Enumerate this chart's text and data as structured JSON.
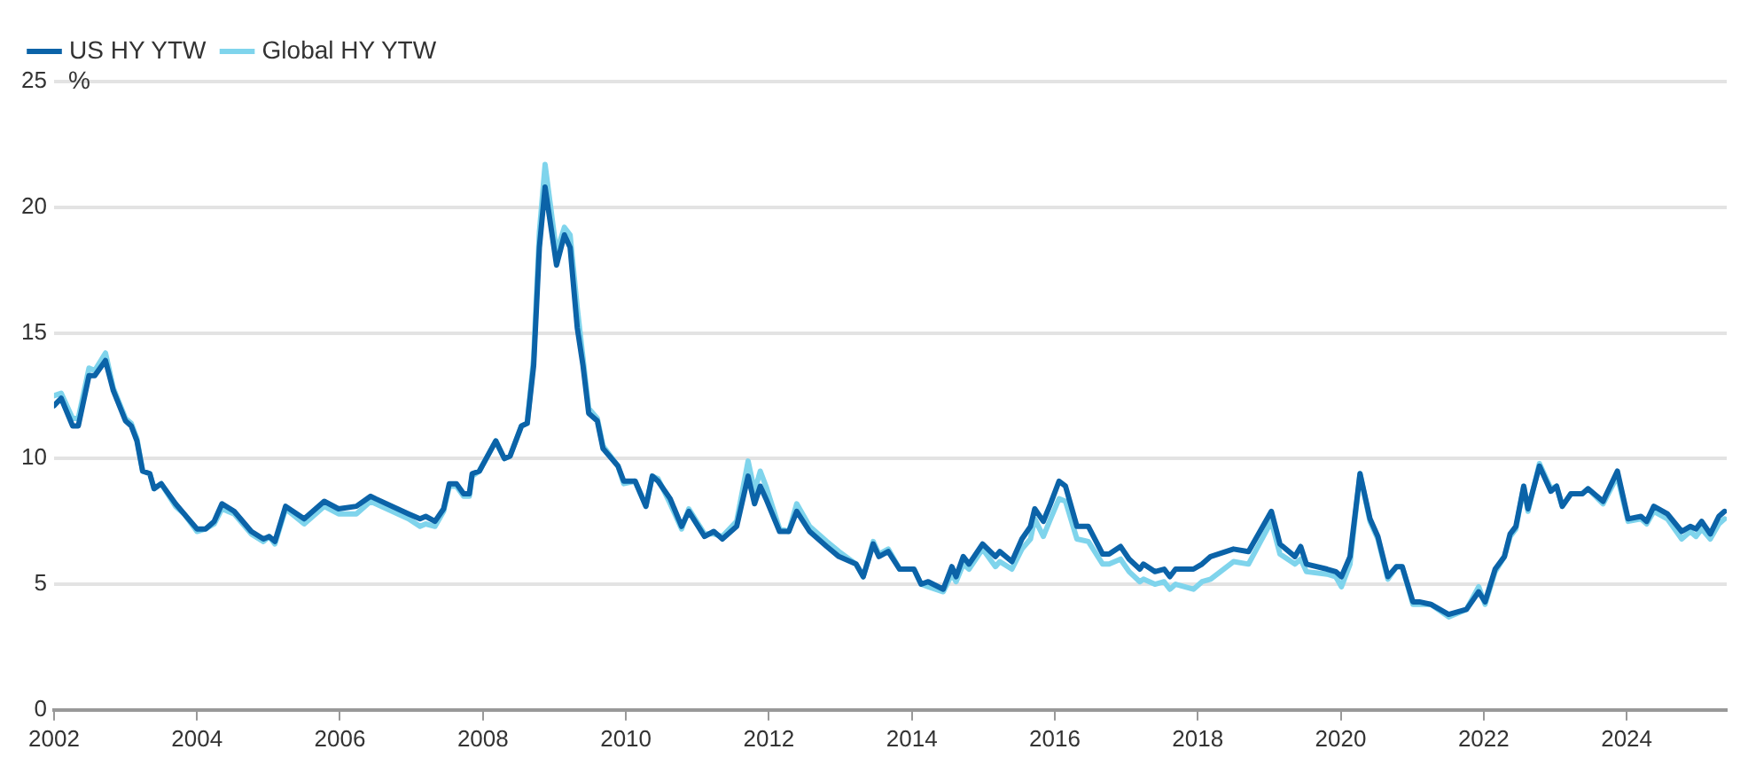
{
  "chart_data": {
    "type": "line",
    "ylabel": "%",
    "xlim": [
      2002,
      2025.4
    ],
    "xticks": [
      2002,
      2004,
      2006,
      2008,
      2010,
      2012,
      2014,
      2016,
      2018,
      2020,
      2022,
      2024
    ],
    "ylim": [
      0,
      25
    ],
    "yticks": [
      0,
      5,
      10,
      15,
      20,
      25
    ],
    "grid": "y",
    "legend": "top left",
    "marker": "none",
    "line_style": "solid",
    "x": [
      2002.0,
      2002.1,
      2002.26,
      2002.34,
      2002.49,
      2002.57,
      2002.72,
      2002.83,
      2003.0,
      2003.08,
      2003.16,
      2003.24,
      2003.34,
      2003.4,
      2003.5,
      2003.7,
      2003.82,
      2004.0,
      2004.12,
      2004.24,
      2004.35,
      2004.52,
      2004.76,
      2004.93,
      2005.01,
      2005.09,
      2005.24,
      2005.5,
      2005.78,
      2005.98,
      2006.23,
      2006.43,
      2006.5,
      2006.96,
      2007.12,
      2007.2,
      2007.33,
      2007.45,
      2007.53,
      2007.63,
      2007.73,
      2007.81,
      2007.85,
      2007.95,
      2008.18,
      2008.3,
      2008.38,
      2008.54,
      2008.62,
      2008.71,
      2008.79,
      2008.87,
      2009.03,
      2009.14,
      2009.22,
      2009.32,
      2009.4,
      2009.48,
      2009.6,
      2009.68,
      2009.89,
      2009.97,
      2010.13,
      2010.28,
      2010.37,
      2010.45,
      2010.62,
      2010.78,
      2010.88,
      2011.1,
      2011.23,
      2011.35,
      2011.55,
      2011.71,
      2011.8,
      2011.88,
      2011.96,
      2012.15,
      2012.28,
      2012.39,
      2012.57,
      2012.81,
      2012.98,
      2013.22,
      2013.32,
      2013.46,
      2013.54,
      2013.67,
      2013.83,
      2014.03,
      2014.13,
      2014.23,
      2014.44,
      2014.56,
      2014.62,
      2014.72,
      2014.8,
      2014.99,
      2015.17,
      2015.23,
      2015.4,
      2015.54,
      2015.66,
      2015.72,
      2015.84,
      2015.94,
      2016.06,
      2016.15,
      2016.31,
      2016.47,
      2016.67,
      2016.76,
      2016.92,
      2017.04,
      2017.19,
      2017.24,
      2017.4,
      2017.53,
      2017.61,
      2017.69,
      2017.94,
      2018.06,
      2018.18,
      2018.5,
      2018.71,
      2019.03,
      2019.15,
      2019.36,
      2019.44,
      2019.52,
      2019.81,
      2019.93,
      2020.01,
      2020.13,
      2020.27,
      2020.41,
      2020.52,
      2020.66,
      2020.78,
      2020.86,
      2021.01,
      2021.1,
      2021.26,
      2021.51,
      2021.76,
      2021.93,
      2022.02,
      2022.16,
      2022.29,
      2022.37,
      2022.45,
      2022.56,
      2022.62,
      2022.78,
      2022.94,
      2023.02,
      2023.1,
      2023.22,
      2023.38,
      2023.46,
      2023.67,
      2023.87,
      2024.02,
      2024.2,
      2024.28,
      2024.38,
      2024.57,
      2024.77,
      2024.89,
      2024.97,
      2025.05,
      2025.17,
      2025.29,
      2025.37
    ],
    "series": [
      {
        "name": "US HY YTW",
        "color": "#0b63a8",
        "values": [
          12.1,
          12.4,
          11.3,
          11.3,
          13.3,
          13.3,
          13.9,
          12.7,
          11.5,
          11.3,
          10.7,
          9.5,
          9.4,
          8.8,
          9.0,
          8.2,
          7.8,
          7.2,
          7.2,
          7.5,
          8.2,
          7.9,
          7.1,
          6.8,
          6.9,
          6.7,
          8.1,
          7.6,
          8.3,
          8.0,
          8.1,
          8.5,
          8.4,
          7.8,
          7.6,
          7.7,
          7.5,
          8.0,
          9.0,
          9.0,
          8.6,
          8.6,
          9.4,
          9.5,
          10.7,
          10.0,
          10.1,
          11.3,
          11.4,
          13.7,
          18.4,
          20.8,
          17.7,
          18.9,
          18.4,
          15.2,
          13.7,
          11.8,
          11.5,
          10.4,
          9.7,
          9.1,
          9.1,
          8.1,
          9.3,
          9.1,
          8.4,
          7.3,
          7.9,
          6.9,
          7.1,
          6.8,
          7.3,
          9.3,
          8.2,
          8.9,
          8.4,
          7.1,
          7.1,
          7.9,
          7.1,
          6.5,
          6.1,
          5.8,
          5.3,
          6.6,
          6.1,
          6.3,
          5.6,
          5.6,
          5.0,
          5.1,
          4.8,
          5.7,
          5.3,
          6.1,
          5.8,
          6.6,
          6.1,
          6.3,
          5.9,
          6.8,
          7.3,
          8.0,
          7.5,
          8.2,
          9.1,
          8.9,
          7.3,
          7.3,
          6.2,
          6.2,
          6.5,
          6.0,
          5.6,
          5.8,
          5.5,
          5.6,
          5.3,
          5.6,
          5.6,
          5.8,
          6.1,
          6.4,
          6.3,
          7.9,
          6.6,
          6.1,
          6.5,
          5.8,
          5.6,
          5.5,
          5.3,
          6.1,
          9.4,
          7.6,
          6.9,
          5.3,
          5.7,
          5.7,
          4.3,
          4.3,
          4.2,
          3.8,
          4.0,
          4.7,
          4.3,
          5.6,
          6.1,
          7.0,
          7.3,
          8.9,
          8.0,
          9.7,
          8.7,
          8.9,
          8.1,
          8.6,
          8.6,
          8.8,
          8.3,
          9.5,
          7.6,
          7.7,
          7.5,
          8.1,
          7.8,
          7.1,
          7.3,
          7.2,
          7.5,
          7.0,
          7.7,
          7.9
        ]
      },
      {
        "name": "Global HY YTW",
        "color": "#7fd4ec",
        "values": [
          12.5,
          12.6,
          11.6,
          11.6,
          13.6,
          13.5,
          14.2,
          12.8,
          11.6,
          11.4,
          10.8,
          9.5,
          9.4,
          8.8,
          9.0,
          8.1,
          7.8,
          7.1,
          7.2,
          7.4,
          8.0,
          7.8,
          7.0,
          6.7,
          6.9,
          6.6,
          8.0,
          7.4,
          8.1,
          7.8,
          7.8,
          8.3,
          8.2,
          7.6,
          7.3,
          7.4,
          7.3,
          7.9,
          8.9,
          8.9,
          8.5,
          8.5,
          9.3,
          9.5,
          10.7,
          10.0,
          10.1,
          11.3,
          11.4,
          14.0,
          19.0,
          21.7,
          18.2,
          19.2,
          18.9,
          16.0,
          14.0,
          12.0,
          11.6,
          10.5,
          9.7,
          9.0,
          9.1,
          8.1,
          9.3,
          9.2,
          8.2,
          7.2,
          8.0,
          7.0,
          7.0,
          6.9,
          7.5,
          9.9,
          8.7,
          9.5,
          8.9,
          7.2,
          7.1,
          8.2,
          7.3,
          6.7,
          6.3,
          5.8,
          5.3,
          6.7,
          6.2,
          6.4,
          5.6,
          5.6,
          5.0,
          4.9,
          4.7,
          5.4,
          5.1,
          5.8,
          5.6,
          6.4,
          5.7,
          5.9,
          5.6,
          6.4,
          6.8,
          7.6,
          6.9,
          7.6,
          8.4,
          8.3,
          6.8,
          6.7,
          5.8,
          5.8,
          6.0,
          5.5,
          5.1,
          5.2,
          5.0,
          5.1,
          4.8,
          5.0,
          4.8,
          5.1,
          5.2,
          5.9,
          5.8,
          7.5,
          6.2,
          5.8,
          6.0,
          5.5,
          5.4,
          5.3,
          4.9,
          5.8,
          9.4,
          7.5,
          6.8,
          5.2,
          5.7,
          5.7,
          4.2,
          4.2,
          4.2,
          3.7,
          4.0,
          4.9,
          4.2,
          5.5,
          6.1,
          6.9,
          7.2,
          8.9,
          7.9,
          9.8,
          8.8,
          8.9,
          8.1,
          8.6,
          8.6,
          8.8,
          8.2,
          9.3,
          7.5,
          7.6,
          7.4,
          7.9,
          7.6,
          6.8,
          7.1,
          6.9,
          7.2,
          6.8,
          7.4,
          7.6
        ]
      }
    ]
  }
}
